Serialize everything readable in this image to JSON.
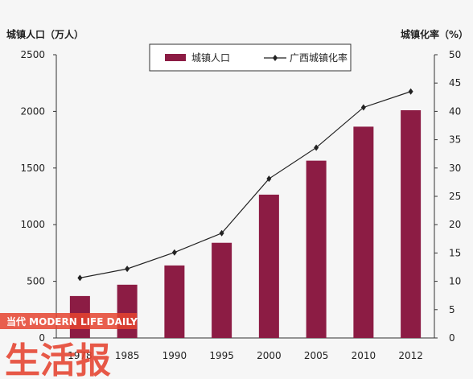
{
  "chart_data": {
    "type": "bar+line",
    "title": "",
    "categories": [
      "1978",
      "1985",
      "1990",
      "1995",
      "2000",
      "2005",
      "2010",
      "2012"
    ],
    "series": [
      {
        "name": "城镇人口",
        "kind": "bar",
        "axis": "left",
        "color": "#8c1c44",
        "values": [
          370,
          470,
          640,
          840,
          1265,
          1565,
          1865,
          2010
        ]
      },
      {
        "name": "广西城镇化率",
        "kind": "line",
        "axis": "right",
        "color": "#222222",
        "values": [
          10.6,
          12.2,
          15.1,
          18.5,
          28.1,
          33.6,
          40.7,
          43.5
        ]
      }
    ],
    "ylabel_left": "城镇人口（万人）",
    "ylabel_right": "城镇化率（%）",
    "ylim_left": [
      0,
      2500
    ],
    "yticks_left": [
      0,
      500,
      1000,
      1500,
      2000,
      2500
    ],
    "ylim_right": [
      0,
      50
    ],
    "yticks_right": [
      0,
      5,
      10,
      15,
      20,
      25,
      30,
      35,
      40,
      45,
      50
    ],
    "grid": false,
    "legend": "top-center"
  },
  "watermark": {
    "brand": "生活报",
    "tagline": "当代 MODERN LIFE DAILY",
    "color": "#e5432f"
  }
}
